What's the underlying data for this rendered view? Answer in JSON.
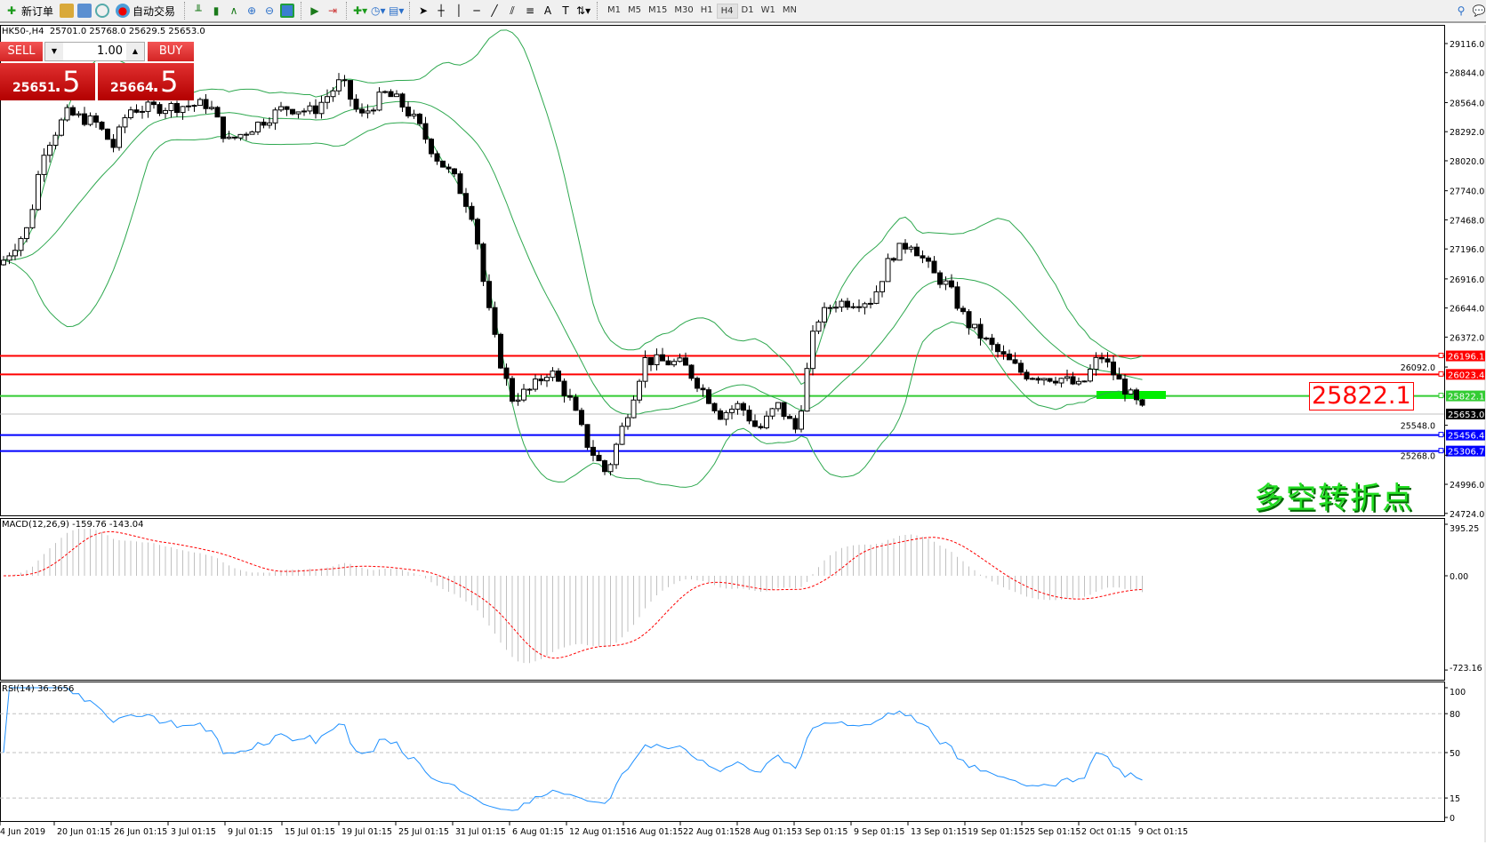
{
  "toolbar": {
    "new_order": "新订单",
    "auto_trading": "自动交易",
    "timeframes": [
      "M1",
      "M5",
      "M15",
      "M30",
      "H1",
      "H4",
      "D1",
      "W1",
      "MN"
    ],
    "active_timeframe": "H4"
  },
  "chart": {
    "symbol_line": "HK50-,H4  25701.0 25768.0 25629.5 25653.0"
  },
  "trade_panel": {
    "sell_label": "SELL",
    "buy_label": "BUY",
    "lot": "1.00",
    "sell_price_main": "25651",
    "sell_price_pips": ".5",
    "buy_price_main": "25664",
    "buy_price_pips": ".5"
  },
  "price_axis": {
    "ticks": [
      "29116.0",
      "28844.0",
      "28564.0",
      "28292.0",
      "28020.0",
      "27740.0",
      "27468.0",
      "27196.0",
      "26916.0",
      "26644.0",
      "26372.0",
      "26092.0",
      "25548.0",
      "25268.0",
      "24996.0",
      "24724.0"
    ]
  },
  "levels": [
    {
      "price": "26196.1",
      "color": "#ff0000"
    },
    {
      "price": "26023.4",
      "color": "#ff0000"
    },
    {
      "price": "25822.1",
      "color": "#33cc33"
    },
    {
      "price": "25653.0",
      "color": "#000000",
      "line": "#c0c0c0"
    },
    {
      "price": "25456.4",
      "color": "#0000ff"
    },
    {
      "price": "25306.7",
      "color": "#0000ff"
    }
  ],
  "annotation": {
    "text": "25822.1"
  },
  "label_text": "多空转折点",
  "colors": {
    "bands": "#2ea84f",
    "macd_hist": "#c0c0c0",
    "macd_signal": "#ff0000",
    "rsi": "#1e90ff",
    "highlight": "#00ee00"
  },
  "macd": {
    "title": "MACD(12,26,9) -159.76 -143.04",
    "ticks": [
      "395.25",
      "0.00",
      "-723.16"
    ]
  },
  "rsi": {
    "title": "RSI(14) 36.3656",
    "ticks": [
      "100",
      "80",
      "50",
      "15",
      "0"
    ]
  },
  "time_axis": {
    "labels": [
      "4 Jun 2019",
      "20 Jun 01:15",
      "26 Jun 01:15",
      "3 Jul 01:15",
      "9 Jul 01:15",
      "15 Jul 01:15",
      "19 Jul 01:15",
      "25 Jul 01:15",
      "31 Jul 01:15",
      "6 Aug 01:15",
      "12 Aug 01:15",
      "16 Aug 01:15",
      "22 Aug 01:15",
      "28 Aug 01:15",
      "3 Sep 01:15",
      "9 Sep 01:15",
      "13 Sep 01:15",
      "19 Sep 01:15",
      "25 Sep 01:15",
      "2 Oct 01:15",
      "9 Oct 01:15"
    ]
  }
}
